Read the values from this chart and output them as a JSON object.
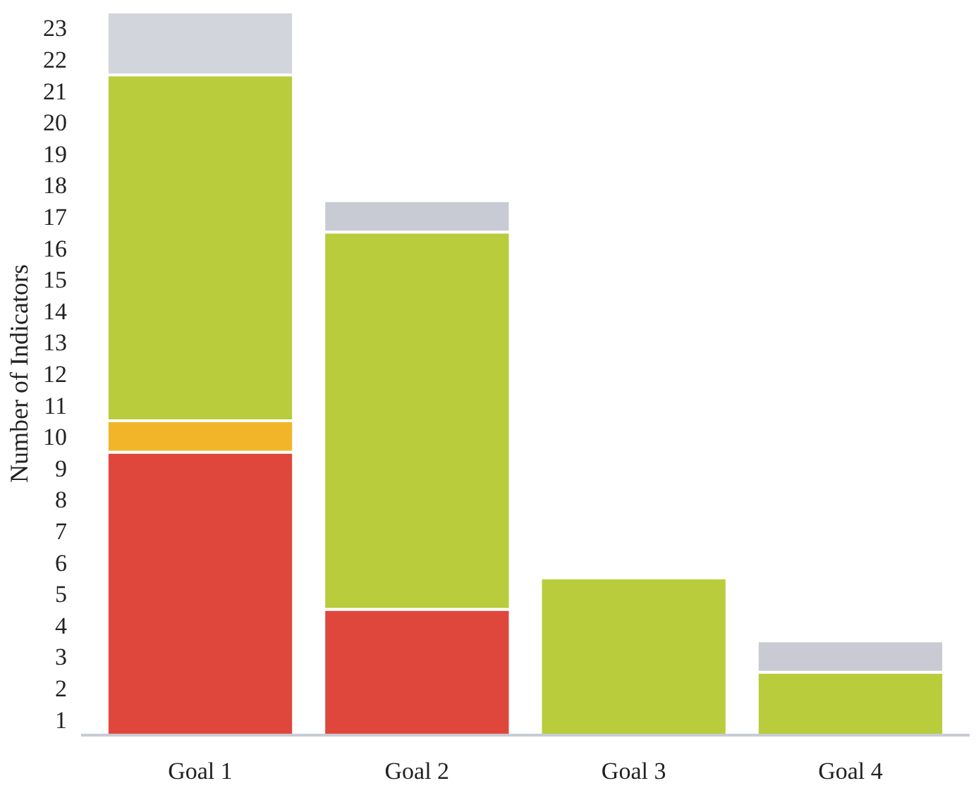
{
  "chart_data": {
    "type": "bar",
    "stacked": true,
    "ylabel": "Number of Indicators",
    "categories": [
      "Goal 1",
      "Goal 2",
      "Goal 3",
      "Goal 4"
    ],
    "series": [
      {
        "color": "#e0473c",
        "values": [
          9,
          4,
          0,
          0
        ]
      },
      {
        "color": "#f2b52a",
        "values": [
          1,
          0,
          0,
          0
        ]
      },
      {
        "color": "#b8cc3c",
        "values": [
          11,
          12,
          5,
          2
        ]
      },
      {
        "color": "#d2d5dc",
        "values": [
          2,
          0,
          0,
          0
        ]
      },
      {
        "color": "#c8cbd3",
        "values": [
          0,
          1,
          0,
          1
        ]
      }
    ],
    "ylim": [
      0,
      23
    ],
    "yticks": [
      {
        "value": 0.5,
        "label": "1"
      },
      {
        "value": 1.5,
        "label": "2"
      },
      {
        "value": 2.5,
        "label": "3"
      },
      {
        "value": 3.5,
        "label": "4"
      },
      {
        "value": 4.5,
        "label": "5"
      },
      {
        "value": 5.5,
        "label": "6"
      },
      {
        "value": 6.5,
        "label": "7"
      },
      {
        "value": 7.5,
        "label": "8"
      },
      {
        "value": 8.5,
        "label": "9"
      },
      {
        "value": 9.5,
        "label": "10"
      },
      {
        "value": 10.5,
        "label": "11"
      },
      {
        "value": 11.5,
        "label": "12"
      },
      {
        "value": 12.5,
        "label": "13"
      },
      {
        "value": 13.5,
        "label": "14"
      },
      {
        "value": 14.5,
        "label": "15"
      },
      {
        "value": 15.5,
        "label": "16"
      },
      {
        "value": 16.5,
        "label": "17"
      },
      {
        "value": 17.5,
        "label": "18"
      },
      {
        "value": 18.5,
        "label": "19"
      },
      {
        "value": 19.5,
        "label": "20"
      },
      {
        "value": 20.5,
        "label": "21"
      },
      {
        "value": 21.5,
        "label": "22"
      },
      {
        "value": 22.5,
        "label": "23"
      }
    ],
    "grid": false
  }
}
